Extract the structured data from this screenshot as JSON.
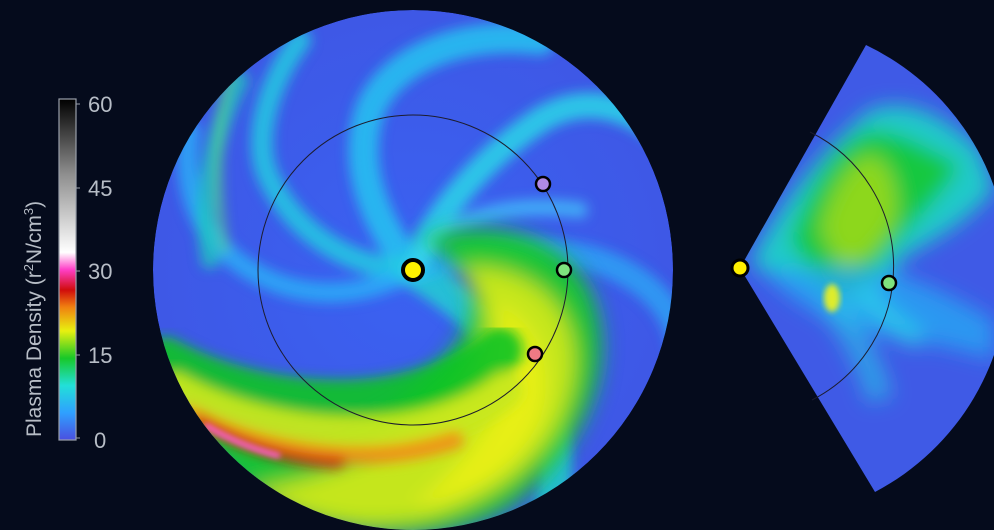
{
  "colorbar": {
    "title": "Plasma Density (r",
    "title_sup": "2",
    "title_mid": "N/cm",
    "title_sup2": "3",
    "title_end": ")",
    "ticks": [
      "60",
      "45",
      "30",
      "15",
      "0"
    ],
    "gradient_stops": [
      "#4a4fe0",
      "#2fa0ff",
      "#22e0d8",
      "#18c828",
      "#e8f010",
      "#f08010",
      "#d00c0c",
      "#ff40c8",
      "#ffffff",
      "#8e8e8e",
      "#000000"
    ]
  },
  "markers": {
    "sun_color": "#fff000",
    "earth_color": "#7ee27e",
    "purple_color": "#b08ae6",
    "red_color": "#f07a84"
  }
}
